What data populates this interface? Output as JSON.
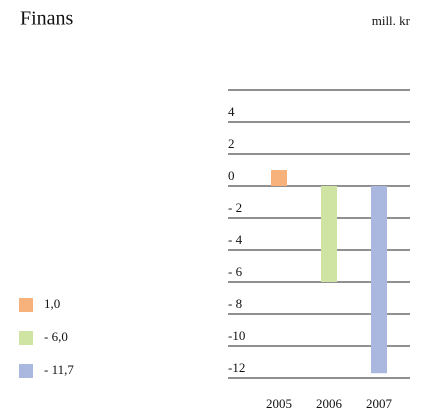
{
  "chart_data": {
    "type": "bar",
    "title": "Finans",
    "unit_label": "mill. kr",
    "categories": [
      "2005",
      "2006",
      "2007"
    ],
    "values": [
      1.0,
      -6.0,
      -11.7
    ],
    "value_labels": [
      "1,0",
      "- 6,0",
      "- 11,7"
    ],
    "colors": [
      "#f7b27c",
      "#cfe4a2",
      "#aab7de"
    ],
    "ylim": [
      -12,
      6
    ],
    "yticks": [
      4,
      2,
      0,
      {
        "value": -2,
        "label": "- 2"
      },
      {
        "value": -4,
        "label": "- 4"
      },
      {
        "value": -6,
        "label": "- 6"
      },
      {
        "value": -8,
        "label": "- 8"
      },
      -10,
      -12
    ],
    "grid": true
  }
}
